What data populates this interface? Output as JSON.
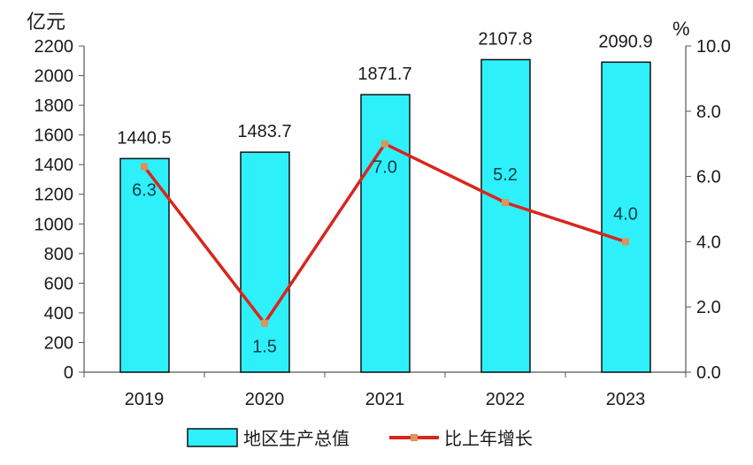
{
  "chart_data": {
    "type": "bar+line",
    "categories": [
      "2019",
      "2020",
      "2021",
      "2022",
      "2023"
    ],
    "series": [
      {
        "name": "地区生产总值",
        "type": "bar",
        "axis": "left",
        "values": [
          1440.5,
          1483.7,
          1871.7,
          2107.8,
          2090.9
        ],
        "labels": [
          "1440.5",
          "1483.7",
          "1871.7",
          "2107.8",
          "2090.9"
        ],
        "color": "#2EF0FA"
      },
      {
        "name": "比上年增长",
        "type": "line",
        "axis": "right",
        "values": [
          6.3,
          1.5,
          7.0,
          5.2,
          4.0
        ],
        "labels": [
          "6.3",
          "1.5",
          "7.0",
          "5.2",
          "4.0"
        ],
        "color": "#D9251E",
        "marker_color": "#D9955A"
      }
    ],
    "left_axis": {
      "unit": "亿元",
      "ylim": [
        0,
        2200
      ],
      "ticks": [
        "0",
        "200",
        "400",
        "600",
        "800",
        "1000",
        "1200",
        "1400",
        "1600",
        "1800",
        "2000",
        "2200"
      ]
    },
    "right_axis": {
      "unit": "%",
      "ylim": [
        0,
        10
      ],
      "ticks": [
        "0.0",
        "2.0",
        "4.0",
        "6.0",
        "8.0",
        "10.0"
      ]
    },
    "grid": false,
    "legend_position": "bottom"
  }
}
